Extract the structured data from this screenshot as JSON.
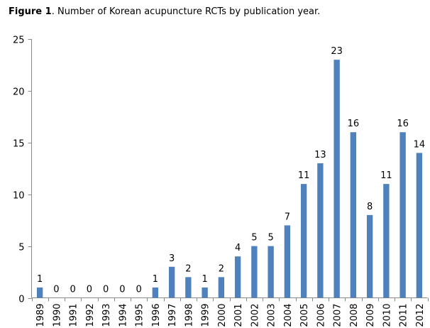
{
  "caption": {
    "label": "Figure 1",
    "text": ". Number of Korean acupuncture RCTs by publication year."
  },
  "chart_data": {
    "type": "bar",
    "title": "",
    "xlabel": "",
    "ylabel": "",
    "categories": [
      "1989",
      "1990",
      "1991",
      "1992",
      "1993",
      "1994",
      "1995",
      "1996",
      "1997",
      "1998",
      "1999",
      "2000",
      "2001",
      "2002",
      "2003",
      "2004",
      "2005",
      "2006",
      "2007",
      "2008",
      "2009",
      "2010",
      "2011",
      "2012"
    ],
    "values": [
      1,
      0,
      0,
      0,
      0,
      0,
      0,
      1,
      3,
      2,
      1,
      2,
      4,
      5,
      5,
      7,
      11,
      13,
      23,
      16,
      8,
      11,
      16,
      14
    ],
    "ylim": [
      0,
      25
    ],
    "yticks": [
      0,
      5,
      10,
      15,
      20,
      25
    ],
    "grid": false,
    "legend": "none",
    "data_labels": true,
    "x_tick_rotation": "vertical",
    "bar_color": "#4F81BD",
    "axis_color": "#888888"
  }
}
